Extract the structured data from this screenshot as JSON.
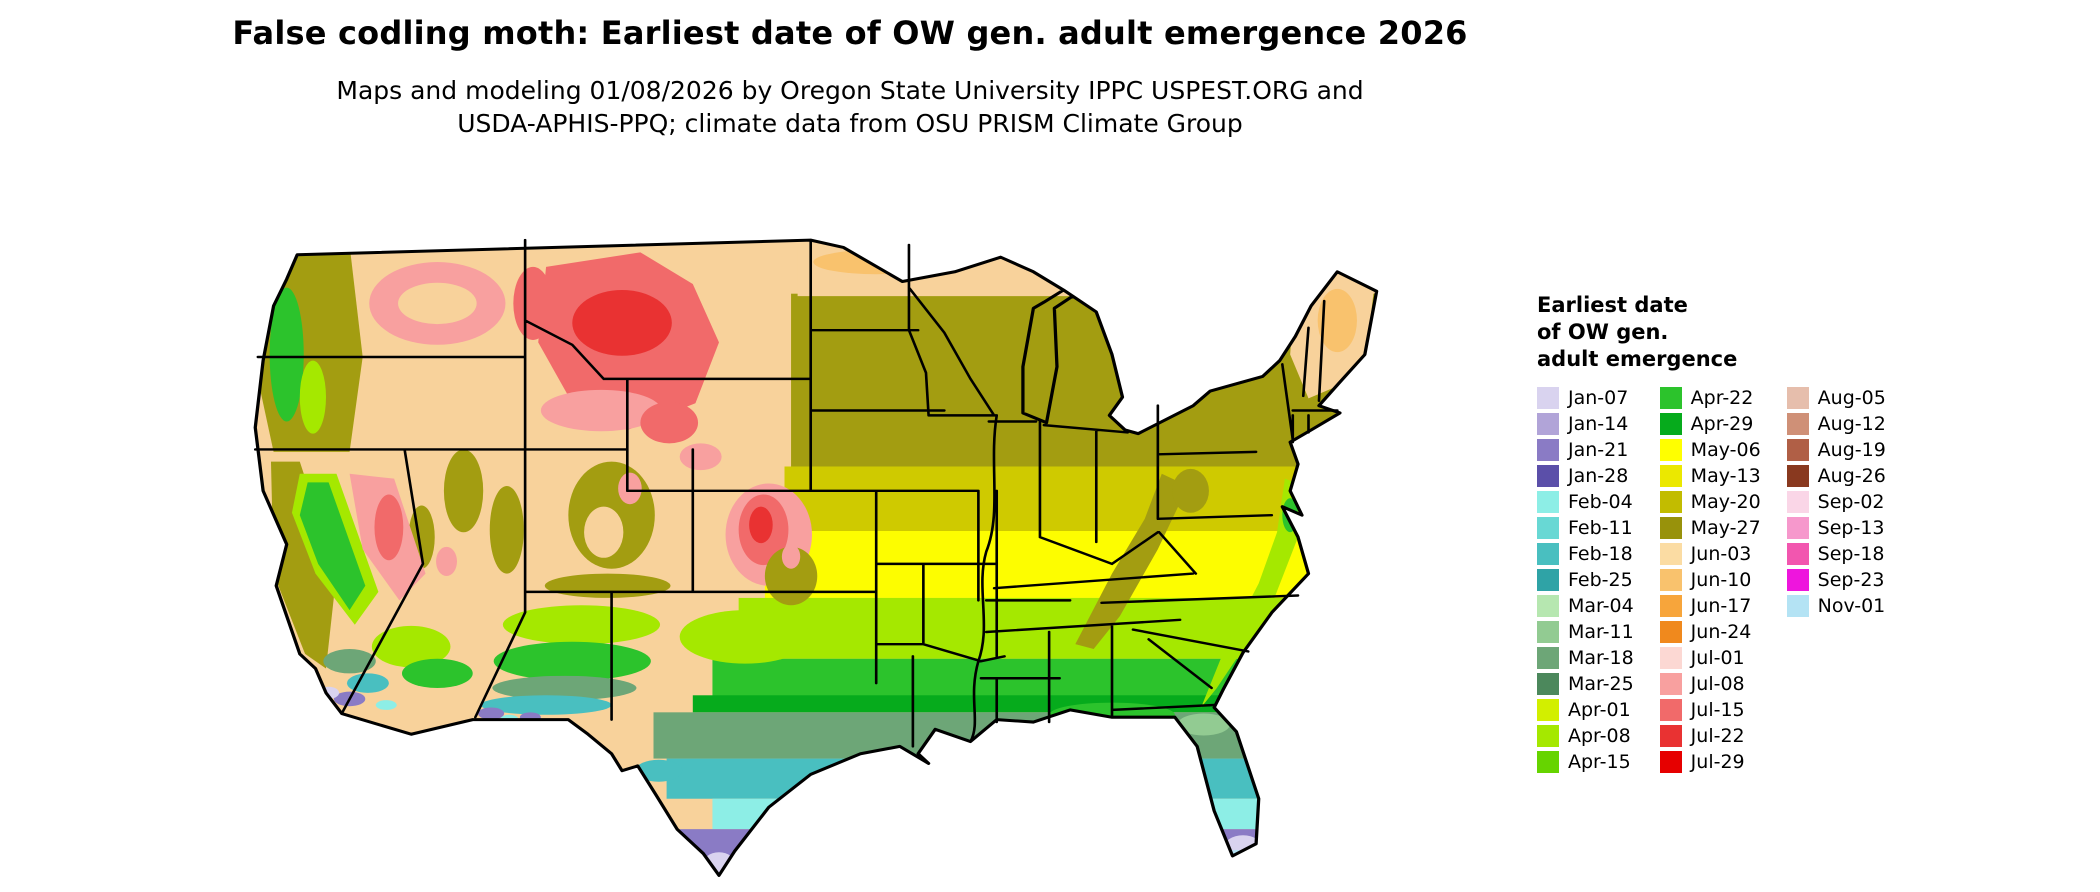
{
  "title": "False codling moth: Earliest date of OW gen. adult emergence 2026",
  "subtitle_line1": "Maps and modeling 01/08/2026 by Oregon State University IPPC USPEST.ORG and",
  "subtitle_line2": "USDA-APHIS-PPQ; climate data from OSU PRISM Climate Group",
  "legend": {
    "title_line1": "Earliest date",
    "title_line2": "of OW gen.",
    "title_line3": "adult emergence",
    "columns": [
      {
        "entries": [
          {
            "label": "Jan-07",
            "color": "#d9d3ef"
          },
          {
            "label": "Jan-14",
            "color": "#b1a4d8"
          },
          {
            "label": "Jan-21",
            "color": "#8a7bc5"
          },
          {
            "label": "Jan-28",
            "color": "#5b4fa9"
          },
          {
            "label": "Feb-04",
            "color": "#8deee6"
          },
          {
            "label": "Feb-11",
            "color": "#68d8d4"
          },
          {
            "label": "Feb-18",
            "color": "#49bfc0"
          },
          {
            "label": "Feb-25",
            "color": "#2fa3a6"
          },
          {
            "label": "Mar-04",
            "color": "#b6e7b0"
          },
          {
            "label": "Mar-11",
            "color": "#92cb92"
          },
          {
            "label": "Mar-18",
            "color": "#6da677"
          },
          {
            "label": "Mar-25",
            "color": "#4c885c"
          },
          {
            "label": "Apr-01",
            "color": "#d2ef00"
          },
          {
            "label": "Apr-08",
            "color": "#a5e800"
          },
          {
            "label": "Apr-15",
            "color": "#66d400"
          }
        ]
      },
      {
        "entries": [
          {
            "label": "Apr-22",
            "color": "#2cc32c"
          },
          {
            "label": "Apr-29",
            "color": "#06ab1c"
          },
          {
            "label": "May-06",
            "color": "#ffff00"
          },
          {
            "label": "May-13",
            "color": "#ebe800"
          },
          {
            "label": "May-20",
            "color": "#c2bc00"
          },
          {
            "label": "May-27",
            "color": "#98920b"
          },
          {
            "label": "Jun-03",
            "color": "#fbdca3"
          },
          {
            "label": "Jun-10",
            "color": "#f9c26d"
          },
          {
            "label": "Jun-17",
            "color": "#f7a53b"
          },
          {
            "label": "Jun-24",
            "color": "#f0891d"
          },
          {
            "label": "Jul-01",
            "color": "#fcd8d3"
          },
          {
            "label": "Jul-08",
            "color": "#f8a09f"
          },
          {
            "label": "Jul-15",
            "color": "#f16a6a"
          },
          {
            "label": "Jul-22",
            "color": "#e93232"
          },
          {
            "label": "Jul-29",
            "color": "#e60000"
          }
        ]
      },
      {
        "entries": [
          {
            "label": "Aug-05",
            "color": "#e6beac"
          },
          {
            "label": "Aug-12",
            "color": "#cf9077"
          },
          {
            "label": "Aug-19",
            "color": "#b05f46"
          },
          {
            "label": "Aug-26",
            "color": "#89391f"
          },
          {
            "label": "Sep-02",
            "color": "#fad6e7"
          },
          {
            "label": "Sep-13",
            "color": "#f698cc"
          },
          {
            "label": "Sep-18",
            "color": "#f256af"
          },
          {
            "label": "Sep-23",
            "color": "#ee15dd"
          },
          {
            "label": "Nov-01",
            "color": "#b4e3f4"
          }
        ]
      }
    ]
  },
  "map_palette": {
    "tan": "#f8d29b",
    "orange": "#f9c26d",
    "orange2": "#f7a53b",
    "olive": "#a39d11",
    "yellowOlive": "#cfca00",
    "yellow": "#fdfd00",
    "yellowGreen": "#a5e800",
    "green": "#2cc32c",
    "darkGreen": "#06ab1c",
    "sage": "#6da677",
    "sageLight": "#92cb92",
    "teal": "#49bfc0",
    "cyan": "#8deee6",
    "paleCyan": "#b4e3f4",
    "purple": "#8a7bc5",
    "lavender": "#d9d3ef",
    "pink": "#f8a09f",
    "red": "#f16a6a",
    "darkRed": "#e93232",
    "border": "#000000"
  }
}
